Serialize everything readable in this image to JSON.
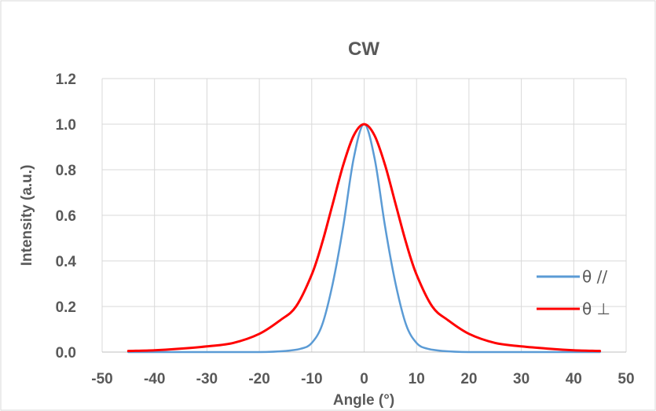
{
  "chart_data": {
    "type": "line",
    "title": "CW",
    "xlabel": "Angle (°)",
    "ylabel": "Intensity (a.u.)",
    "xlim": [
      -50,
      50
    ],
    "ylim": [
      0,
      1.2
    ],
    "x_ticks": [
      "-50",
      "-40",
      "-30",
      "-20",
      "-10",
      "0",
      "10",
      "20",
      "30",
      "40",
      "50"
    ],
    "y_ticks": [
      "0.0",
      "0.2",
      "0.4",
      "0.6",
      "0.8",
      "1.0",
      "1.2"
    ],
    "grid": true,
    "legend_position": "right",
    "series": [
      {
        "name": "θ //",
        "color": "#5B9BD5",
        "x": [
          -45,
          -40,
          -30,
          -20,
          -15,
          -12,
          -10,
          -8,
          -6,
          -4,
          -2,
          0,
          2,
          4,
          6,
          8,
          10,
          12,
          15,
          20,
          30,
          40,
          45
        ],
        "y": [
          0,
          0,
          0,
          0,
          0.005,
          0.015,
          0.04,
          0.12,
          0.3,
          0.55,
          0.85,
          1.0,
          0.85,
          0.55,
          0.3,
          0.12,
          0.04,
          0.015,
          0.005,
          0,
          0,
          0,
          0
        ]
      },
      {
        "name": "θ ⊥",
        "color": "#FF0000",
        "x": [
          -45,
          -40,
          -35,
          -30,
          -25,
          -20,
          -16,
          -13,
          -10,
          -8,
          -6,
          -4,
          -2,
          0,
          2,
          4,
          6,
          8,
          10,
          13,
          16,
          20,
          25,
          30,
          35,
          40,
          45
        ],
        "y": [
          0.005,
          0.008,
          0.015,
          0.025,
          0.04,
          0.08,
          0.14,
          0.2,
          0.34,
          0.48,
          0.65,
          0.82,
          0.95,
          1.0,
          0.95,
          0.82,
          0.65,
          0.48,
          0.34,
          0.2,
          0.14,
          0.08,
          0.04,
          0.025,
          0.015,
          0.008,
          0.005
        ]
      }
    ]
  }
}
